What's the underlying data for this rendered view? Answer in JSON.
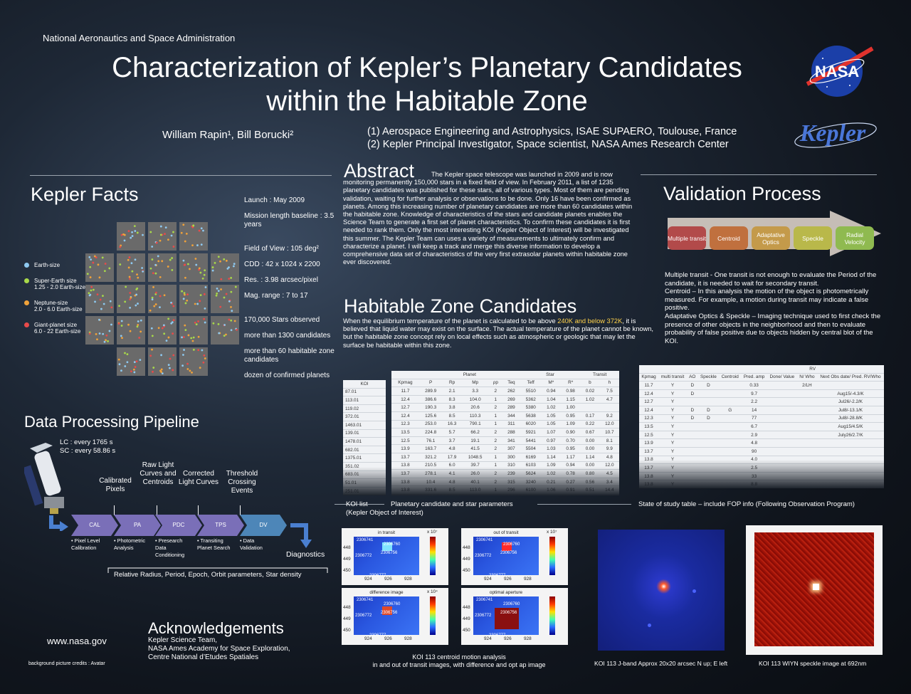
{
  "header": {
    "agency": "National Aeronautics and Space Administration",
    "title_line1": "Characterization of Kepler’s Planetary Candidates",
    "title_line2": "within the Habitable Zone",
    "authors": "William Rapin¹, Bill Borucki²",
    "affiliation1": "(1) Aerospace Engineering and Astrophysics, ISAE SUPAERO, Toulouse, France",
    "affiliation2": "(2) Kepler  Principal Investigator, Space scientist, NASA Ames Research Center",
    "nasa_logo_text": "NASA",
    "kepler_logo_text": "Kepler"
  },
  "kepler_facts": {
    "heading": "Kepler Facts",
    "items": [
      "Launch : May 2009",
      "Mission length baseline : 3.5 years",
      "Field of View : 105 deg²",
      "CDD : 42 x 1024 x 2200",
      "Res. : 3.98 arcsec/pixel",
      "Mag. range : 7 to 17",
      "170,000 Stars observed",
      "more than 1300 candidates",
      "more than 60 habitable zone candidates",
      "dozen of confirmed planets"
    ],
    "legend": [
      {
        "label": "Earth-size",
        "sub": "",
        "color": "#8ec9f0"
      },
      {
        "label": "Super-Earth size",
        "sub": "1.25 - 2.0 Earth-size",
        "color": "#a8d94a"
      },
      {
        "label": "Neptune-size",
        "sub": "2.0 - 6.0 Earth-size",
        "color": "#f0a23a"
      },
      {
        "label": "Giant-planet size",
        "sub": "6.0 - 22 Earth-size",
        "color": "#e84a4a"
      }
    ]
  },
  "abstract": {
    "heading": "Abstract",
    "text": "The Kepler space telescope was launched in 2009 and is now monitoring permanently 150,000 stars in a fixed field of view. In February 2011, a list of 1235 planetary candidates was published for these stars, all of various types. Most of them are pending validation, waiting for further analysis or observations to be done. Only 16 have been confirmed as planets. Among this increasing number of planetary candidates are more than 60 candidates within the habitable zone. Knowledge of characteristics of the stars and candidate planets enables the Science Team to generate a first set of planet characteristics. To confirm these candidates it is first needed to rank them. Only the most interesting KOI (Kepler Object of Interest) will be investigated this summer. The Kepler Team can uses a variety of measurements to ultimately confirm and characterize a planet. I will keep a track and merge this diverse information to develop a comprehensive data set of characteristics of the very first extrasolar planets within habitable zone ever discovered."
  },
  "habitable_zone": {
    "heading": "Habitable Zone Candidates",
    "text_before": "When the equilibrium temperature of the planet is calculated to be above ",
    "highlight": "240K and below 372K",
    "text_after": ", it is believed that liquid water may exist on the surface. The actual temperature of the planet cannot be known, but the habitable zone concept rely on local effects such as atmospheric or geologic that may let the surface be habitable within this zone."
  },
  "validation": {
    "heading": "Validation Process",
    "steps": [
      {
        "label": "Multiple transit",
        "color": "#b24a4a"
      },
      {
        "label": "Centroid",
        "color": "#c0703e"
      },
      {
        "label": "Adaptative Optics",
        "color": "#c49a4a"
      },
      {
        "label": "Speckle",
        "color": "#b9b84a"
      },
      {
        "label": "Radial Velocity",
        "color": "#8fba50"
      }
    ],
    "paragraphs": [
      {
        "key": "Multiple transit",
        "text": " - One transit is not enough to evaluate the Period of the candidate, it is needed to wait for secondary transit."
      },
      {
        "key": "Centroid",
        "text": " – In this analysis the motion of the object is photometrically measured. For example, a motion during transit may indicate a false positive."
      },
      {
        "key": "Adaptative Optics & Speckle",
        "text": " – Imaging technique used to first check the presence of other objects in the neighborhood and then to evaluate probability of false positive due to objects hidden by central blot of the KOI."
      }
    ]
  },
  "pipeline": {
    "heading": "Data Processing Pipeline",
    "cadence1": "LC : every 1765 s",
    "cadence2": "SC : every 58.86 s",
    "top_labels": [
      "Calibrated Pixels",
      "Raw Light Curves and Centroids",
      "Corrected Light Curves",
      "Threshold Crossing Events"
    ],
    "stages": [
      "CAL",
      "PA",
      "PDC",
      "TPS",
      "DV"
    ],
    "stage_desc": [
      "• Pixel Level Calibration",
      "• Photometric Analysis",
      "• Presearch Data Conditioning",
      "• Transiting Planet Search",
      "• Data Validation"
    ],
    "diagnostics": "Diagnostics",
    "outputs": "Relative Radius, Period, Epoch, Orbit parameters, Star density"
  },
  "koi_table": {
    "header": "KOI",
    "rows": [
      "87.01",
      "113.01",
      "119.02",
      "372.01",
      "1463.01",
      "139.01",
      "1478.01",
      "682.01",
      "1375.01",
      "351.02",
      "683.01",
      "51.01",
      "251.01"
    ]
  },
  "param_table": {
    "group_planet": "Planet",
    "group_star": "Star",
    "group_transit": "Transit",
    "columns": [
      "Kpmag",
      "P",
      "Rp",
      "Mp",
      "ρp",
      "Teq",
      "Teff",
      "M*",
      "R*",
      "b",
      "h"
    ],
    "rows": [
      [
        "11.7",
        "289.9",
        "2.1",
        "3.3",
        "2",
        "262",
        "5510",
        "0.94",
        "0.98",
        "0.02",
        "7.5"
      ],
      [
        "12.4",
        "386.6",
        "8.3",
        "104.0",
        "1",
        "269",
        "5362",
        "1.04",
        "1.15",
        "1.02",
        "4.7"
      ],
      [
        "12.7",
        "190.3",
        "3.8",
        "20.6",
        "2",
        "289",
        "5380",
        "1.02",
        "1.00",
        "",
        ""
      ],
      [
        "12.4",
        "125.6",
        "8.5",
        "110.3",
        "1",
        "344",
        "5638",
        "1.05",
        "0.95",
        "0.17",
        "9.2"
      ],
      [
        "12.3",
        "253.0",
        "16.3",
        "790.1",
        "1",
        "311",
        "6020",
        "1.05",
        "1.09",
        "0.22",
        "12.0"
      ],
      [
        "13.5",
        "224.8",
        "5.7",
        "66.2",
        "2",
        "288",
        "5921",
        "1.07",
        "0.90",
        "0.67",
        "10.7"
      ],
      [
        "12.5",
        "76.1",
        "3.7",
        "19.1",
        "2",
        "341",
        "5441",
        "0.97",
        "0.70",
        "0.00",
        "8.1"
      ],
      [
        "13.9",
        "163.7",
        "4.8",
        "41.5",
        "2",
        "307",
        "5504",
        "1.03",
        "0.95",
        "0.00",
        "9.9"
      ],
      [
        "13.7",
        "321.2",
        "17.9",
        "1048.5",
        "1",
        "300",
        "6169",
        "1.14",
        "1.17",
        "1.14",
        "4.8"
      ],
      [
        "13.8",
        "210.5",
        "6.0",
        "39.7",
        "1",
        "310",
        "6103",
        "1.09",
        "0.94",
        "0.00",
        "12.0"
      ],
      [
        "13.7",
        "278.1",
        "4.1",
        "26.0",
        "2",
        "239",
        "5624",
        "1.02",
        "0.78",
        "0.80",
        "4.5"
      ],
      [
        "13.8",
        "10.4",
        "4.8",
        "40.1",
        "2",
        "315",
        "3240",
        "0.21",
        "0.27",
        "0.56",
        "3.4"
      ],
      [
        "13.8",
        "331.6",
        "8.5",
        "113.0",
        "1",
        "296",
        "6100",
        "1.06",
        "0.91",
        "0.51",
        "14.4"
      ]
    ]
  },
  "state_table": {
    "group_rv": "RV",
    "columns": [
      "Kpmag",
      "multi transit",
      "AO",
      "Speckle",
      "Centroid",
      "Pred. amp",
      "Done/ Value",
      "N/ Who",
      "Next Obs date/ Pred. RV/Who"
    ],
    "rows": [
      [
        "11.7",
        "Y",
        "D",
        "D",
        "",
        "0.33",
        "",
        "2/LH",
        ""
      ],
      [
        "12.4",
        "Y",
        "D",
        "",
        "",
        "9.7",
        "",
        "",
        "Aug15/-4.3/K"
      ],
      [
        "12.7",
        "Y",
        "",
        "",
        "",
        "2.2",
        "",
        "",
        "Jul26/-2.2/K"
      ],
      [
        "12.4",
        "Y",
        "D",
        "D",
        "G",
        "14",
        "",
        "",
        "Jul8/-13.1/K"
      ],
      [
        "12.3",
        "Y",
        "D",
        "D",
        "",
        "77",
        "",
        "",
        "Jul8/-28.8/K"
      ],
      [
        "13.5",
        "Y",
        "",
        "",
        "",
        "6.7",
        "",
        "",
        "Aug15/4.5/K"
      ],
      [
        "12.5",
        "Y",
        "",
        "",
        "",
        "2.9",
        "",
        "",
        "July26/2.7/K"
      ],
      [
        "13.9",
        "Y",
        "",
        "",
        "",
        "4.8",
        "",
        "",
        ""
      ],
      [
        "13.7",
        "Y",
        "",
        "",
        "",
        "90",
        "",
        "",
        ""
      ],
      [
        "13.8",
        "Y",
        "",
        "",
        "",
        "4.0",
        "",
        "",
        ""
      ],
      [
        "13.7",
        "Y",
        "",
        "",
        "",
        "2.5",
        "",
        "",
        ""
      ],
      [
        "13.8",
        "Y",
        "",
        "",
        "",
        "33",
        "",
        "",
        ""
      ],
      [
        "13.8",
        "Y",
        "",
        "",
        "",
        "8.8",
        "",
        "",
        ""
      ]
    ]
  },
  "captions": {
    "koi_list": "KOI list",
    "koi_list_sub": "(Kepler Object of Interest)",
    "param": "Planetary candidate and star parameters",
    "state": "State of study table – include FOP info (Following Observation Program)",
    "centroid": "KOI 113 centroid motion analysis",
    "centroid_sub": "in and out of transit images, with difference and opt ap image",
    "jband": "KOI 113 J-band Approx 20x20 arcsec N up; E left",
    "speckle": "KOI 113 WIYN speckle image at 692nm"
  },
  "centroid_panels": {
    "titles": [
      "in transit",
      "out of transit",
      "difference image",
      "optimal aperture"
    ],
    "scales": [
      "x 10⁷",
      "x 10⁷",
      "x 10⁴",
      ""
    ],
    "y_ticks": [
      "448",
      "449",
      "450"
    ],
    "x_ticks": [
      "924",
      "926",
      "928"
    ],
    "stars": [
      "2306741",
      "2306760",
      "2306772",
      "2306756",
      "2306777"
    ]
  },
  "acknowledgements": {
    "heading": "Acknowledgements",
    "lines": [
      "Kepler Science Team,",
      "NASA Ames Academy for Space Exploration,",
      "Centre National d’Etudes Spatiales"
    ]
  },
  "footer": {
    "website": "www.nasa.gov",
    "credits": "background picture credits : Avatar"
  }
}
